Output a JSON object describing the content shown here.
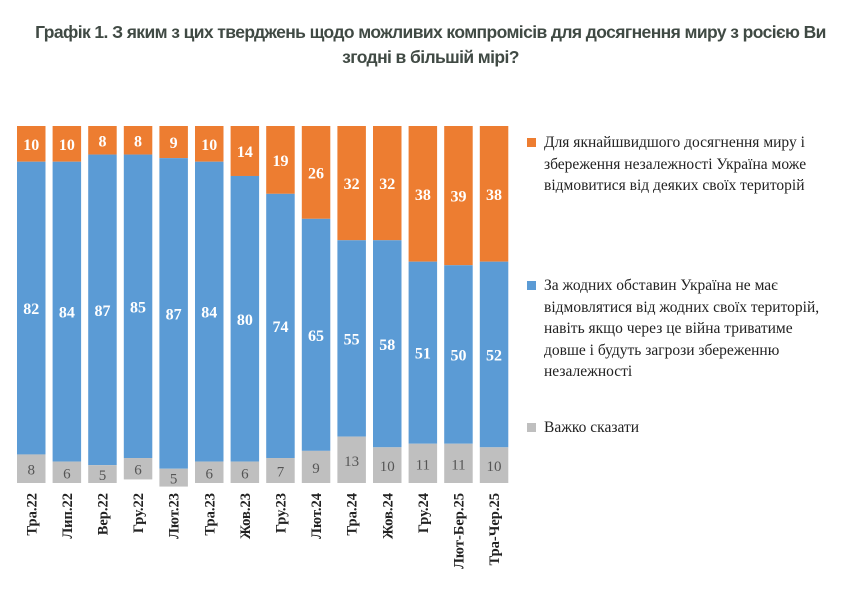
{
  "chart_data": {
    "type": "bar",
    "stacked": true,
    "title": "Графік 1. З яким з цих тверджень щодо можливих компромісів для досягнення миру з росією Ви згодні в більшій мірі?",
    "categories": [
      "Тра.22",
      "Лип.22",
      "Вер.22",
      "Гру.22",
      "Лют.23",
      "Тра.23",
      "Жов.23",
      "Гру.23",
      "Лют.24",
      "Тра.24",
      "Жов.24",
      "Гру.24",
      "Лют-Бер.25",
      "Тра-Чер.25"
    ],
    "ylim": [
      0,
      100
    ],
    "grid": false,
    "legend_position": "right",
    "series": [
      {
        "name": "Для якнайшвидшого досягнення миру і збереження незалежності Україна може відмовитися від деяких своїх територій",
        "color": "#ED7D31",
        "values": [
          10,
          10,
          8,
          8,
          9,
          10,
          14,
          19,
          26,
          32,
          32,
          38,
          39,
          38
        ]
      },
      {
        "name": "За жодних обставин Україна не має відмовлятися від жодних своїх територій, навіть якщо через це війна триватиме довше і будуть загрози збереженню незалежності",
        "color": "#5B9BD5",
        "values": [
          82,
          84,
          87,
          85,
          87,
          84,
          80,
          74,
          65,
          55,
          58,
          51,
          50,
          52
        ]
      },
      {
        "name": "Важко сказати",
        "color": "#BFBFBF",
        "values": [
          8,
          6,
          5,
          6,
          5,
          6,
          6,
          7,
          9,
          13,
          10,
          11,
          11,
          10
        ]
      }
    ]
  }
}
